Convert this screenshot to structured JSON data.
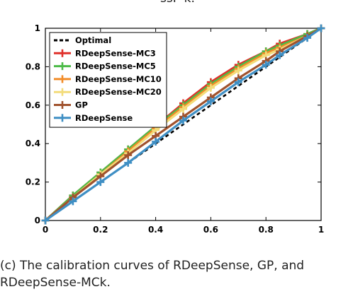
{
  "top_fragment": "ssF-k.",
  "caption_line1": "(c) The calibration curves of RDeepSense, GP, and",
  "caption_line2": "RDeepSense-MCk.",
  "chart_data": {
    "type": "line",
    "title": "",
    "xlabel": "",
    "ylabel": "",
    "xlim": [
      0,
      1
    ],
    "ylim": [
      0,
      1
    ],
    "xticks": [
      "0",
      "0.2",
      "0.4",
      "0.6",
      "0.8",
      "1"
    ],
    "yticks": [
      "0",
      "0.2",
      "0.4",
      "0.6",
      "0.8",
      "1"
    ],
    "grid": false,
    "legend_position": "top-left",
    "x": [
      0,
      0.1,
      0.2,
      0.3,
      0.4,
      0.5,
      0.6,
      0.7,
      0.8,
      0.85,
      0.95,
      1.0
    ],
    "series": [
      {
        "name": "Optimal",
        "color": "#000000",
        "style": "dashed",
        "marker": "none",
        "values": [
          0,
          0.1,
          0.2,
          0.3,
          0.4,
          0.5,
          0.6,
          0.7,
          0.8,
          0.85,
          0.95,
          1.0
        ]
      },
      {
        "name": "RDeepSense-MC3",
        "color": "#e0302a",
        "style": "solid",
        "marker": "plus",
        "values": [
          0,
          0.13,
          0.25,
          0.37,
          0.49,
          0.61,
          0.72,
          0.81,
          0.88,
          0.92,
          0.97,
          1.0
        ]
      },
      {
        "name": "RDeepSense-MC5",
        "color": "#4cbb48",
        "style": "solid",
        "marker": "plus",
        "values": [
          0,
          0.13,
          0.25,
          0.37,
          0.49,
          0.6,
          0.71,
          0.8,
          0.88,
          0.91,
          0.97,
          1.0
        ]
      },
      {
        "name": "RDeepSense-MC10",
        "color": "#f28c28",
        "style": "solid",
        "marker": "plus",
        "values": [
          0,
          0.12,
          0.24,
          0.36,
          0.48,
          0.59,
          0.7,
          0.79,
          0.87,
          0.9,
          0.96,
          1.0
        ]
      },
      {
        "name": "RDeepSense-MC20",
        "color": "#f3dc7a",
        "style": "solid",
        "marker": "plus",
        "values": [
          0,
          0.12,
          0.24,
          0.35,
          0.47,
          0.58,
          0.69,
          0.78,
          0.86,
          0.89,
          0.96,
          1.0
        ]
      },
      {
        "name": "GP",
        "color": "#a0522d",
        "style": "solid",
        "marker": "plus",
        "values": [
          0,
          0.12,
          0.23,
          0.34,
          0.44,
          0.54,
          0.64,
          0.74,
          0.83,
          0.88,
          0.96,
          1.0
        ]
      },
      {
        "name": "RDeepSense",
        "color": "#3f8fc4",
        "style": "solid",
        "marker": "plus",
        "values": [
          0,
          0.1,
          0.2,
          0.3,
          0.41,
          0.52,
          0.62,
          0.72,
          0.81,
          0.86,
          0.95,
          1.0
        ]
      }
    ]
  }
}
